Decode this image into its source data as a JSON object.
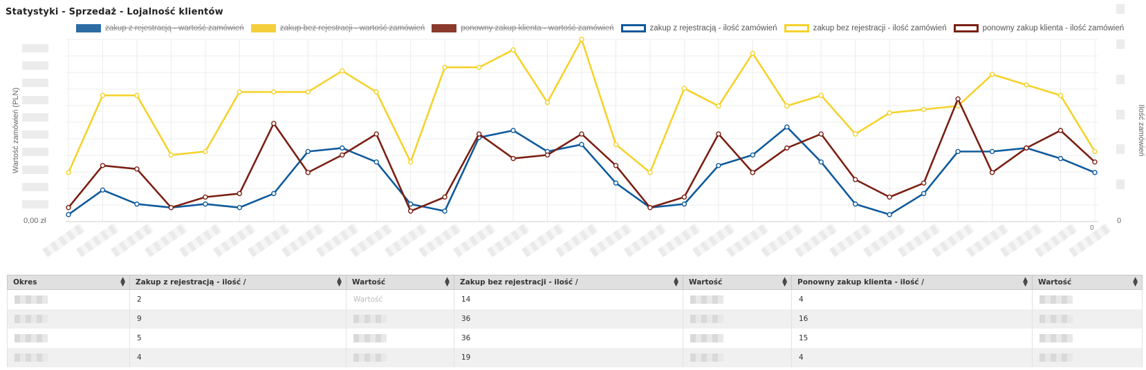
{
  "page": {
    "title": "Statystyki - Sprzedaż - Lojalność klientów"
  },
  "legend": [
    {
      "label": "zakup z rejestracją - wartość zamówień",
      "color": "#2d6ca5",
      "style": "fill",
      "hidden": true
    },
    {
      "label": "zakup bez rejestracji - wartość zamówień",
      "color": "#f4cf3b",
      "style": "fill",
      "hidden": true
    },
    {
      "label": "ponowny zakup klienta - wartość zamówień",
      "color": "#8b3a2e",
      "style": "fill",
      "hidden": true
    },
    {
      "label": "zakup z rejestracją - ilość zamówień",
      "color": "#0e5a9c",
      "style": "outline",
      "hidden": false
    },
    {
      "label": "zakup bez rejestracji - ilość zamówień",
      "color": "#f5d22b",
      "style": "outline",
      "hidden": false
    },
    {
      "label": "ponowny zakup klienta - ilość zamówień",
      "color": "#7a1f12",
      "style": "outline",
      "hidden": false
    }
  ],
  "chart_data": {
    "type": "line",
    "ylabel_left": "Wartość zamówień (PLN)",
    "ylabel_right": "Ilość zamówień",
    "left_axis_zero_label": "0,00 zł",
    "right_axis_zero_label": "0",
    "last_x_tick_label": "0",
    "ylim_right": [
      0,
      52
    ],
    "grid": true,
    "legend_position": "top",
    "series": [
      {
        "name": "zakup z rejestracją - ilość zamówień",
        "color": "#0e5a9c",
        "values": [
          2,
          9,
          5,
          4,
          5,
          4,
          8,
          20,
          21,
          17,
          5,
          3,
          24,
          26,
          20,
          22,
          11,
          4,
          5,
          16,
          19,
          27,
          17,
          5,
          2,
          8,
          20,
          20,
          21,
          18,
          14
        ]
      },
      {
        "name": "zakup bez rejestracji - ilość zamówień",
        "color": "#f5d22b",
        "values": [
          14,
          36,
          36,
          19,
          20,
          37,
          37,
          37,
          43,
          37,
          17,
          44,
          44,
          49,
          34,
          52,
          22,
          14,
          38,
          33,
          48,
          33,
          36,
          25,
          31,
          32,
          33,
          42,
          39,
          36,
          20
        ]
      },
      {
        "name": "ponowny zakup klienta - ilość zamówień",
        "color": "#7a1f12",
        "values": [
          4,
          16,
          15,
          4,
          7,
          8,
          28,
          14,
          19,
          25,
          3,
          7,
          25,
          18,
          19,
          25,
          16,
          4,
          7,
          25,
          14,
          21,
          25,
          12,
          7,
          11,
          35,
          14,
          21,
          26,
          17
        ]
      }
    ]
  },
  "table": {
    "columns": [
      "Okres",
      "Zakup z rejestracją - ilość /",
      "Wartość",
      "Zakup bez rejestracji - ilość /",
      "Wartość",
      "Ponowny zakup klienta - ilość /",
      "Wartość"
    ],
    "first_row_value_label": "Wartość",
    "rows": [
      {
        "reg": "2",
        "noreg": "14",
        "repeat": "4"
      },
      {
        "reg": "9",
        "noreg": "36",
        "repeat": "16"
      },
      {
        "reg": "5",
        "noreg": "36",
        "repeat": "15"
      },
      {
        "reg": "4",
        "noreg": "19",
        "repeat": "4"
      }
    ]
  }
}
